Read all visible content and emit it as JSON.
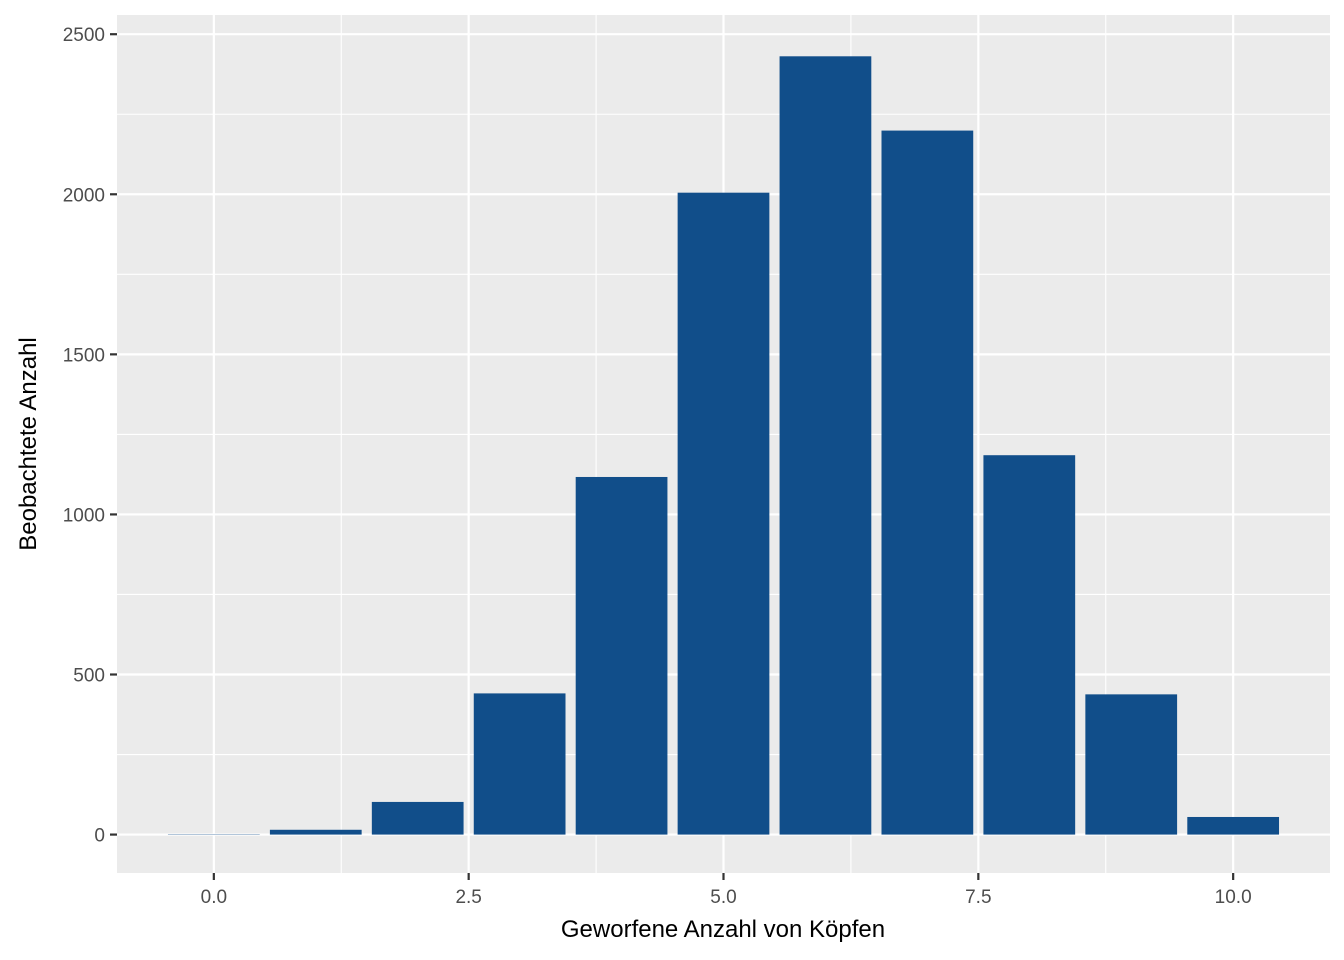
{
  "chart_data": {
    "type": "bar",
    "title": "",
    "xlabel": "Geworfene Anzahl von Köpfen",
    "ylabel": "Beobachtete Anzahl",
    "categories": [
      0,
      1,
      2,
      3,
      4,
      5,
      6,
      7,
      8,
      9,
      10
    ],
    "values": [
      1,
      15,
      102,
      441,
      1117,
      2005,
      2431,
      2199,
      1185,
      438,
      55
    ],
    "xlim": [
      -0.95,
      10.95
    ],
    "ylim": [
      -120,
      2560
    ],
    "x_ticks": [
      0,
      2.5,
      5,
      7.5,
      10
    ],
    "x_tick_labels": [
      "0.0",
      "2.5",
      "5.0",
      "7.5",
      "10.0"
    ],
    "y_ticks": [
      0,
      500,
      1000,
      1500,
      2000,
      2500
    ],
    "y_tick_labels": [
      "0",
      "500",
      "1000",
      "1500",
      "2000",
      "2500"
    ],
    "bar_width": 0.9,
    "grid": true,
    "colors": {
      "bar": "#114e8a",
      "panel": "#ebebeb",
      "grid": "#ffffff"
    }
  }
}
